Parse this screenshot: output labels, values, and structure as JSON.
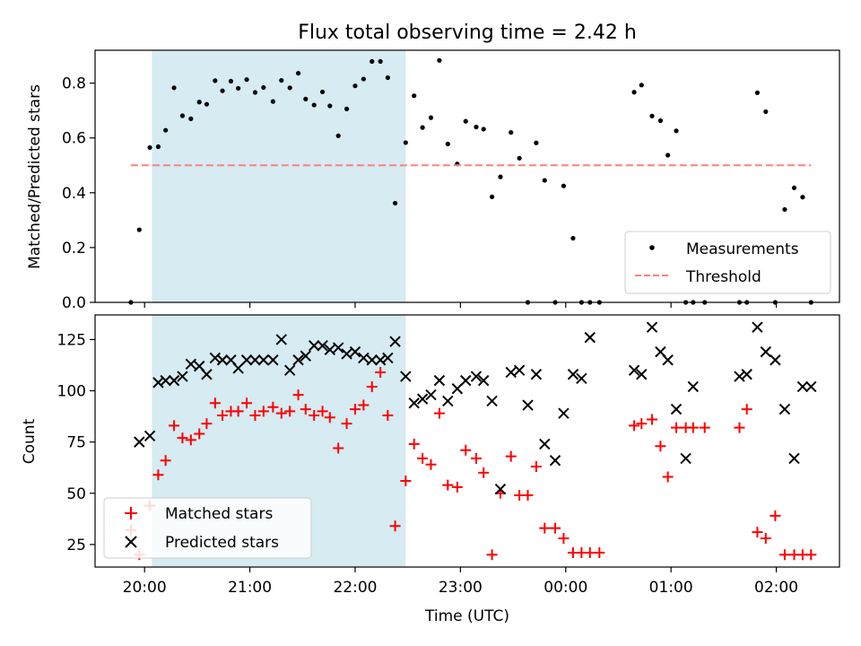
{
  "figure": {
    "title": "Flux total observing time = 2.42 h"
  },
  "chart_data": [
    {
      "type": "scatter",
      "panel": "top",
      "title": "Flux total observing time = 2.42 h",
      "xlabel": "",
      "ylabel": "Matched/Predicted stars",
      "ylim": [
        0,
        0.92
      ],
      "yticks": [
        0.0,
        0.2,
        0.4,
        0.6,
        0.8
      ],
      "ytick_labels": [
        "0.0",
        "0.2",
        "0.4",
        "0.6",
        "0.8"
      ],
      "xlim": [
        -0.47,
        6.6
      ],
      "xticks_hours": [
        0,
        1,
        2,
        3,
        4,
        5,
        6
      ],
      "x_note": "hours after 20:00 UTC",
      "shaded_span": [
        0.07,
        2.48
      ],
      "shaded_color": "#add8e6",
      "legend": "lower right",
      "series": [
        {
          "name": "Measurements",
          "marker": "dot",
          "color": "#000000",
          "x": [
            -0.13,
            -0.05,
            0.05,
            0.13,
            0.2,
            0.28,
            0.36,
            0.44,
            0.52,
            0.59,
            0.67,
            0.74,
            0.82,
            0.89,
            0.97,
            1.05,
            1.13,
            1.22,
            1.3,
            1.38,
            1.46,
            1.53,
            1.61,
            1.69,
            1.76,
            1.84,
            1.92,
            2.0,
            2.08,
            2.16,
            2.24,
            2.31,
            2.38,
            2.48,
            2.56,
            2.64,
            2.72,
            2.8,
            2.88,
            2.97,
            3.05,
            3.15,
            3.22,
            3.3,
            3.38,
            3.48,
            3.56,
            3.64,
            3.72,
            3.8,
            3.9,
            3.98,
            4.07,
            4.15,
            4.23,
            4.32,
            4.65,
            4.72,
            4.82,
            4.9,
            4.97,
            5.05,
            5.14,
            5.21,
            5.32,
            5.65,
            5.72,
            5.82,
            5.9,
            5.99,
            6.08,
            6.17,
            6.25,
            6.33
          ],
          "y": [
            0.0,
            0.265,
            0.565,
            0.568,
            0.628,
            0.783,
            0.681,
            0.67,
            0.731,
            0.723,
            0.809,
            0.772,
            0.807,
            0.781,
            0.813,
            0.766,
            0.784,
            0.733,
            0.81,
            0.783,
            0.836,
            0.742,
            0.72,
            0.768,
            0.717,
            0.608,
            0.706,
            0.79,
            0.815,
            0.879,
            0.879,
            0.82,
            0.362,
            0.583,
            0.754,
            0.638,
            0.674,
            0.883,
            0.578,
            0.505,
            0.661,
            0.64,
            0.632,
            0.385,
            0.458,
            0.62,
            0.526,
            0.0,
            0.582,
            0.445,
            0.0,
            0.425,
            0.234,
            0.0,
            0.0,
            0.0,
            0.767,
            0.793,
            0.68,
            0.663,
            0.537,
            0.626,
            0.0,
            0.0,
            0.0,
            0.0,
            0.0,
            0.765,
            0.696,
            0.0,
            0.339,
            0.418,
            0.384,
            0.0
          ]
        },
        {
          "name": "Threshold",
          "marker": "dashed-line",
          "color": "#ff7f7f",
          "x": [
            -0.13,
            6.33
          ],
          "y": [
            0.5,
            0.5
          ]
        }
      ]
    },
    {
      "type": "scatter",
      "panel": "bottom",
      "xlabel": "Time (UTC)",
      "ylabel": "Count",
      "ylim": [
        14,
        137
      ],
      "yticks": [
        25,
        50,
        75,
        100,
        125
      ],
      "ytick_labels": [
        "25",
        "50",
        "75",
        "100",
        "125"
      ],
      "xlim": [
        -0.47,
        6.6
      ],
      "xticks_hours": [
        0,
        1,
        2,
        3,
        4,
        5,
        6
      ],
      "xtick_labels": [
        "20:00",
        "21:00",
        "22:00",
        "23:00",
        "00:00",
        "01:00",
        "02:00"
      ],
      "shaded_span": [
        0.07,
        2.48
      ],
      "shaded_color": "#add8e6",
      "legend": "lower left",
      "series": [
        {
          "name": "Matched stars",
          "marker": "plus",
          "color": "#ff0000",
          "x": [
            -0.13,
            -0.05,
            0.05,
            0.13,
            0.2,
            0.28,
            0.36,
            0.44,
            0.52,
            0.59,
            0.67,
            0.74,
            0.82,
            0.89,
            0.97,
            1.05,
            1.13,
            1.22,
            1.3,
            1.38,
            1.46,
            1.53,
            1.61,
            1.69,
            1.76,
            1.84,
            1.92,
            2.0,
            2.08,
            2.16,
            2.24,
            2.31,
            2.38,
            2.48,
            2.56,
            2.64,
            2.72,
            2.8,
            2.88,
            2.97,
            3.05,
            3.15,
            3.22,
            3.3,
            3.38,
            3.48,
            3.56,
            3.64,
            3.72,
            3.8,
            3.9,
            3.98,
            4.07,
            4.15,
            4.23,
            4.32,
            4.65,
            4.72,
            4.82,
            4.9,
            4.97,
            5.05,
            5.14,
            5.21,
            5.32,
            5.65,
            5.72,
            5.82,
            5.9,
            5.99,
            6.08,
            6.17,
            6.25,
            6.33
          ],
          "y": [
            32,
            20,
            44,
            59,
            66,
            83,
            77,
            76,
            79,
            84,
            94,
            88,
            90,
            90,
            94,
            88,
            90,
            92,
            89,
            90,
            98,
            91,
            88,
            90,
            87,
            72,
            84,
            91,
            93,
            102,
            109,
            88,
            34,
            56,
            74,
            67,
            64,
            89,
            54,
            53,
            71,
            67,
            60,
            20,
            50,
            68,
            49,
            49,
            63,
            33,
            33,
            28,
            21,
            21,
            21,
            21,
            83,
            84,
            86,
            73,
            58,
            82,
            82,
            82,
            82,
            82,
            91,
            31,
            28,
            39,
            20,
            20,
            20,
            20
          ]
        },
        {
          "name": "Predicted stars",
          "marker": "x",
          "color": "#000000",
          "x": [
            -0.05,
            0.05,
            0.13,
            0.2,
            0.28,
            0.36,
            0.44,
            0.52,
            0.59,
            0.67,
            0.74,
            0.82,
            0.89,
            0.97,
            1.05,
            1.13,
            1.22,
            1.3,
            1.38,
            1.46,
            1.53,
            1.61,
            1.69,
            1.76,
            1.84,
            1.92,
            2.0,
            2.08,
            2.16,
            2.24,
            2.31,
            2.38,
            2.48,
            2.56,
            2.64,
            2.72,
            2.8,
            2.88,
            2.97,
            3.05,
            3.15,
            3.22,
            3.3,
            3.38,
            3.48,
            3.56,
            3.64,
            3.72,
            3.8,
            3.9,
            3.98,
            4.07,
            4.15,
            4.23,
            4.65,
            4.72,
            4.82,
            4.9,
            4.97,
            5.05,
            5.14,
            5.21,
            5.65,
            5.72,
            5.82,
            5.9,
            5.99,
            6.08,
            6.17,
            6.25,
            6.33
          ],
          "y": [
            75,
            78,
            104,
            105,
            105,
            107,
            113,
            112,
            108,
            116,
            115,
            115,
            111,
            115,
            115,
            115,
            115,
            125,
            110,
            115,
            117,
            122,
            122,
            120,
            121,
            118,
            119,
            116,
            115,
            115,
            116,
            124,
            107,
            94,
            96,
            98,
            105,
            95,
            101,
            105,
            107,
            105,
            95,
            52,
            109,
            110,
            93,
            108,
            74,
            66,
            89,
            108,
            106,
            126,
            110,
            108,
            131,
            119,
            115,
            91,
            67,
            102,
            107,
            108,
            131,
            119,
            115,
            91,
            67,
            102,
            102
          ]
        }
      ]
    }
  ]
}
